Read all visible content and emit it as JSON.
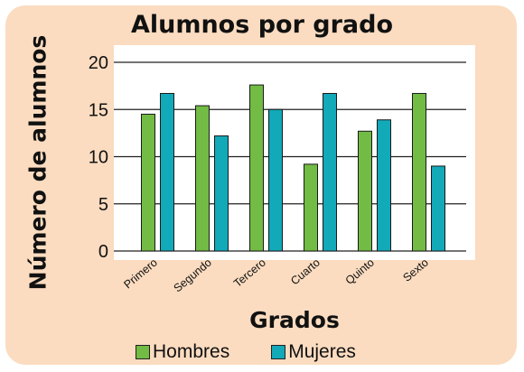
{
  "chart_data": {
    "type": "bar",
    "title": "Alumnos por grado",
    "xlabel": "Grados",
    "ylabel": "Número de alumnos",
    "categories": [
      "Primero",
      "Segundo",
      "Tercero",
      "Cuarto",
      "Quinto",
      "Sexto"
    ],
    "ylim": [
      0,
      20
    ],
    "yticks": [
      "0",
      "5",
      "10",
      "15",
      "20"
    ],
    "grid": true,
    "legend": "bottom",
    "series": [
      {
        "name": "Hombres",
        "color": "#72bb44",
        "values": [
          14.5,
          15.4,
          17.6,
          9.2,
          12.7,
          16.7
        ]
      },
      {
        "name": "Mujeres",
        "color": "#12a9b8",
        "values": [
          16.7,
          12.2,
          15.0,
          16.7,
          13.9,
          9.0
        ]
      }
    ]
  }
}
